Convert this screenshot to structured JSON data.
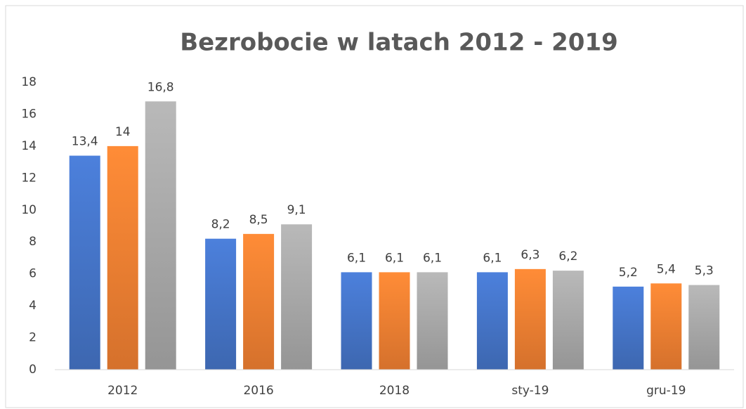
{
  "chart_data": {
    "type": "bar",
    "title": "Bezrobocie w latach 2012 - 2019",
    "categories": [
      "2012",
      "2016",
      "2018",
      "sty-19",
      "gru-19"
    ],
    "series": [
      {
        "color": "#4472c4",
        "values": [
          13.4,
          8.2,
          6.1,
          6.1,
          5.2
        ],
        "value_labels": [
          "13,4",
          "8,2",
          "6,1",
          "6,1",
          "5,2"
        ]
      },
      {
        "color": "#ed7d31",
        "values": [
          14,
          8.5,
          6.1,
          6.3,
          5.4
        ],
        "value_labels": [
          "14",
          "8,5",
          "6,1",
          "6,3",
          "5,4"
        ]
      },
      {
        "color": "#a5a5a5",
        "values": [
          16.8,
          9.1,
          6.1,
          6.2,
          5.3
        ],
        "value_labels": [
          "16,8",
          "9,1",
          "6,1",
          "6,2",
          "5,3"
        ]
      }
    ],
    "ylim": [
      0,
      18
    ],
    "yticks": [
      0,
      2,
      4,
      6,
      8,
      10,
      12,
      14,
      16,
      18
    ],
    "grid": false
  }
}
